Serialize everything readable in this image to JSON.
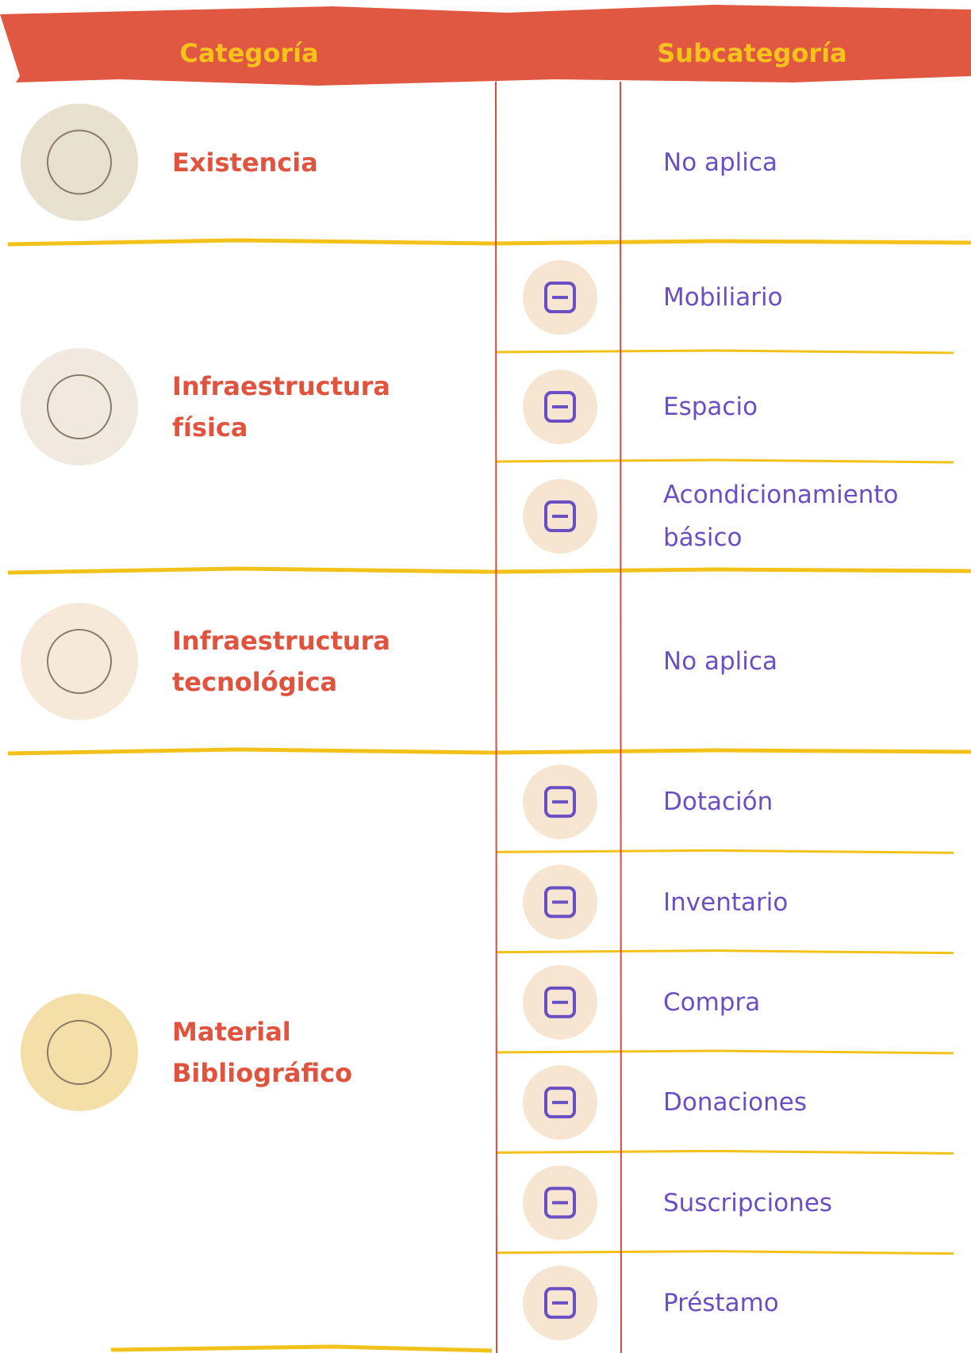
{
  "header": {
    "category": "Categoría",
    "subcategory": "Subcategoría"
  },
  "rows": [
    {
      "category": "Existencia",
      "subcategories": [
        "No aplica"
      ]
    },
    {
      "category": "Infraestructura física",
      "subcategories": [
        "Mobiliario",
        "Espacio",
        "Acondicionamiento básico"
      ]
    },
    {
      "category": "Infraestructura tecnológica",
      "subcategories": [
        "No aplica"
      ]
    },
    {
      "category": "Material Bibliográfico",
      "subcategories": [
        "Dotación",
        "Inventario",
        "Compra",
        "Donaciones",
        "Suscripciones",
        "Préstamo"
      ]
    }
  ]
}
